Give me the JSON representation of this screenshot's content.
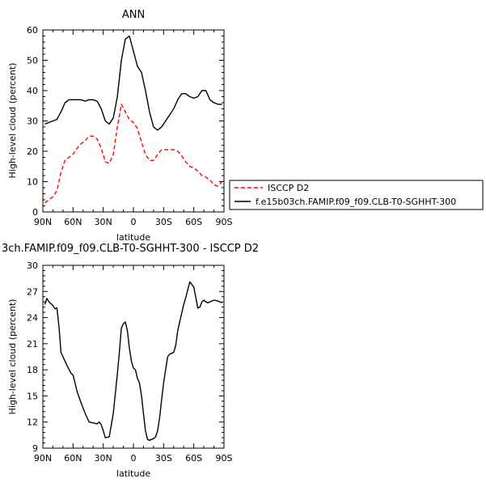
{
  "chart_data": [
    {
      "type": "line",
      "title": "ANN",
      "xlabel": "latitude",
      "ylabel": "High-level cloud (percent)",
      "xlim": [
        90,
        -90
      ],
      "ylim": [
        0,
        60
      ],
      "xticks": [
        "90N",
        "60N",
        "30N",
        "0",
        "30S",
        "60S",
        "90S"
      ],
      "yticks": [
        "0",
        "10",
        "20",
        "30",
        "40",
        "50",
        "60"
      ],
      "legend_position": "right",
      "series": [
        {
          "name": "ISCCP D2",
          "color": "#ff0000",
          "dash": "dashed",
          "x": [
            88,
            84,
            80,
            76,
            72,
            68,
            64,
            60,
            56,
            52,
            48,
            44,
            40,
            36,
            32,
            28,
            24,
            20,
            16,
            12,
            8,
            4,
            0,
            -4,
            -8,
            -12,
            -16,
            -20,
            -24,
            -28,
            -32,
            -36,
            -40,
            -44,
            -48,
            -52,
            -56,
            -60,
            -64,
            -68,
            -72,
            -76,
            -80,
            -84,
            -88
          ],
          "values": [
            3,
            4,
            5,
            7,
            13,
            17,
            18,
            19,
            21,
            22.5,
            23.5,
            25,
            25,
            24,
            21,
            16.5,
            16,
            19,
            28,
            35.5,
            33,
            30.5,
            29.5,
            27.5,
            23,
            19,
            17,
            17,
            19,
            20.5,
            20.5,
            20.5,
            20.5,
            20,
            18.5,
            16.5,
            15,
            14.5,
            13.5,
            12,
            11.5,
            10.5,
            9,
            8.5,
            10
          ]
        },
        {
          "name": "f.e15b03ch.FAMIP.f09_f09.CLB-T0-SGHHT-300",
          "color": "#000000",
          "dash": "solid",
          "x": [
            88,
            84,
            80,
            76,
            72,
            68,
            64,
            60,
            56,
            52,
            48,
            44,
            40,
            36,
            32,
            28,
            24,
            20,
            16,
            12,
            8,
            4,
            0,
            -4,
            -8,
            -12,
            -16,
            -20,
            -24,
            -28,
            -32,
            -36,
            -40,
            -44,
            -48,
            -52,
            -56,
            -60,
            -64,
            -68,
            -72,
            -76,
            -80,
            -84,
            -88
          ],
          "values": [
            29,
            29.5,
            30,
            30.5,
            33,
            36,
            37,
            37,
            37,
            37,
            36.5,
            37,
            37,
            36.5,
            34,
            30,
            29,
            31,
            38,
            50,
            57,
            58,
            53,
            48,
            46,
            40,
            33,
            28,
            27,
            28,
            30,
            32,
            34,
            37,
            39,
            39,
            38,
            37.5,
            38,
            40,
            40,
            37,
            36,
            35.5,
            35.5
          ]
        }
      ]
    },
    {
      "type": "line",
      "title": "3ch.FAMIP.f09_f09.CLB-T0-SGHHT-300 - ISCCP D2",
      "xlabel": "latitude",
      "ylabel": "High-level cloud (percent)",
      "xlim": [
        90,
        -90
      ],
      "ylim": [
        9,
        30
      ],
      "xticks": [
        "90N",
        "60N",
        "30N",
        "0",
        "30S",
        "60S",
        "90S"
      ],
      "yticks": [
        "9",
        "12",
        "15",
        "18",
        "21",
        "24",
        "27",
        "30"
      ],
      "series": [
        {
          "color": "#000000",
          "dash": "solid",
          "x": [
            88,
            86,
            84,
            82,
            80,
            78,
            76,
            74,
            72,
            70,
            66,
            62,
            60,
            58,
            56,
            52,
            48,
            44,
            40,
            36,
            34,
            32,
            30,
            28,
            24,
            20,
            16,
            14,
            12,
            10,
            8,
            6,
            4,
            2,
            0,
            -2,
            -4,
            -6,
            -8,
            -10,
            -12,
            -14,
            -16,
            -18,
            -20,
            -22,
            -24,
            -26,
            -28,
            -30,
            -32,
            -34,
            -36,
            -38,
            -40,
            -42,
            -44,
            -46,
            -48,
            -50,
            -52,
            -56,
            -60,
            -64,
            -66,
            -68,
            -70,
            -72,
            -74,
            -76,
            -80,
            -84,
            -88
          ],
          "values": [
            25.5,
            26.2,
            25.8,
            25.6,
            25.4,
            25,
            25.1,
            23,
            20,
            19.5,
            18.5,
            17.6,
            17.4,
            16.5,
            15.5,
            14.2,
            13,
            12,
            11.9,
            11.8,
            12,
            11.7,
            11,
            10.2,
            10.3,
            13,
            17.5,
            20,
            22.8,
            23.3,
            23.5,
            22.5,
            20.5,
            19,
            18.2,
            18,
            17,
            16.5,
            15,
            13,
            11,
            10,
            9.9,
            10,
            10.1,
            10.3,
            11,
            12.5,
            14.5,
            16.5,
            18,
            19.5,
            19.8,
            19.9,
            20,
            20.8,
            22.5,
            23.5,
            24.5,
            25.5,
            26.3,
            28.1,
            27.5,
            25.1,
            25.2,
            25.8,
            26,
            25.8,
            25.7,
            25.8,
            26,
            25.9,
            25.7
          ]
        }
      ]
    }
  ]
}
